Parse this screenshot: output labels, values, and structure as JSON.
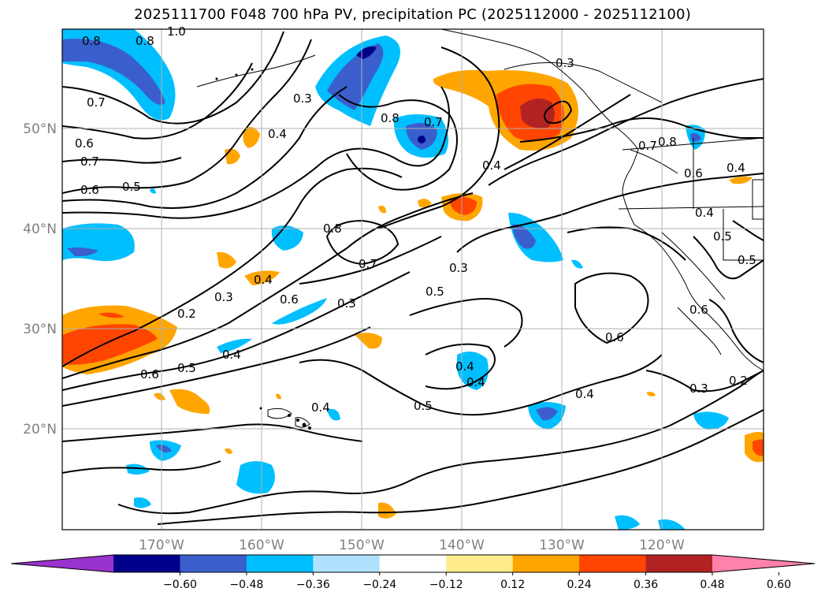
{
  "title": "2025111700 F048 700 hPa PV, precipitation PC (2025112000 - 2025112100)",
  "lat_labels": [
    "50°N",
    "40°N",
    "30°N",
    "20°N"
  ],
  "lon_labels": [
    "170°W",
    "160°W",
    "150°W",
    "140°W",
    "130°W",
    "120°W"
  ],
  "colorbar": {
    "ticks": [
      "−0.60",
      "−0.48",
      "−0.36",
      "−0.24",
      "−0.12",
      "0.12",
      "0.24",
      "0.36",
      "0.48",
      "0.60"
    ],
    "colors": [
      "#9a32cd",
      "#00008b",
      "#3a5fcd",
      "#00bfff",
      "#b0e2ff",
      "#ffffff",
      "#ffec8b",
      "#ffa500",
      "#ff4500",
      "#b22222",
      "#ff82ab"
    ]
  },
  "contour_labels": [
    "0.8",
    "0.8",
    "1.0",
    "0.7",
    "0.6",
    "0.7",
    "0.6",
    "0.5",
    "0.3",
    "0.4",
    "0.8",
    "0.7",
    "0.4",
    "0.3",
    "0.8",
    "0.7",
    "0.4",
    "0.3",
    "0.5",
    "0.6",
    "0.3",
    "0.2",
    "0.3",
    "0.4",
    "0.5",
    "0.4",
    "0.6",
    "0.4",
    "0.5",
    "0.4",
    "0.6",
    "0.4",
    "0.3",
    "0.2",
    "0.7",
    "0.8",
    "0.6",
    "0.4",
    "0.4",
    "0.5",
    "0.5",
    "0.6"
  ]
}
